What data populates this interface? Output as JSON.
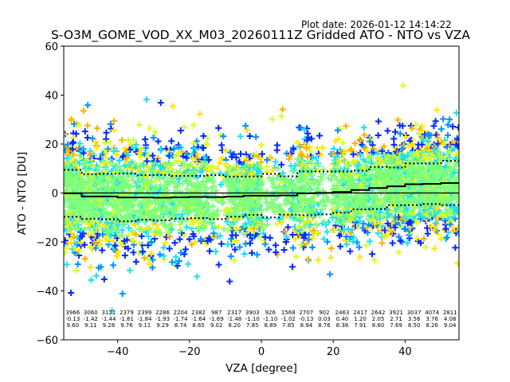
{
  "chart_data": {
    "type": "scatter",
    "title": "S-O3M_GOME_VOD_XX_M03_20260111Z Gridded ATO - NTO vs VZA",
    "plot_date": "Plot date: 2026-01-12 14:14:22",
    "xlabel": "VZA [degree]",
    "ylabel": "ATO - NTO [DU]",
    "xlim": [
      -55,
      55
    ],
    "ylim": [
      -60,
      60
    ],
    "xticks": [
      -40,
      -20,
      0,
      20,
      40
    ],
    "xtick_labels": [
      "−40",
      "−20",
      "0",
      "20",
      "40"
    ],
    "yticks": [
      -60,
      -40,
      -20,
      0,
      20,
      40,
      60
    ],
    "ytick_labels": [
      "−60",
      "−40",
      "−20",
      "0",
      "20",
      "40",
      "60"
    ],
    "grid": false,
    "marker": "plus",
    "reference_line_y": 0,
    "bin_width": 5,
    "bins": {
      "x_start": [
        -55,
        -50,
        -45,
        -40,
        -35,
        -30,
        -25,
        -20,
        -15,
        -10,
        -5,
        0,
        5,
        10,
        15,
        20,
        25,
        30,
        35,
        40,
        45,
        50
      ],
      "count": [
        3966,
        3060,
        3121,
        2379,
        2399,
        2286,
        2204,
        2382,
        987,
        2317,
        3903,
        926,
        1568,
        2707,
        902,
        2463,
        2417,
        2642,
        3921,
        3037,
        4074,
        2811
      ],
      "mean": [
        -0.13,
        -1.42,
        -1.44,
        -1.81,
        -1.84,
        -1.93,
        -1.74,
        -1.64,
        -1.69,
        -1.48,
        -1.1,
        -1.1,
        -1.02,
        -0.13,
        0.03,
        0.4,
        1.2,
        2.05,
        2.71,
        3.56,
        3.76,
        4.08
      ],
      "std": [
        9.6,
        9.11,
        9.28,
        9.76,
        9.11,
        9.29,
        8.74,
        8.65,
        9.02,
        8.2,
        7.85,
        8.89,
        7.85,
        8.94,
        8.76,
        8.38,
        7.91,
        8.6,
        7.69,
        8.5,
        8.26,
        9.04
      ]
    },
    "series_colors": [
      "#0028ff",
      "#0090ff",
      "#1ee0f0",
      "#7dff7a",
      "#d8ff2a",
      "#ffe600",
      "#ffb000"
    ],
    "line_color": "#000000"
  }
}
